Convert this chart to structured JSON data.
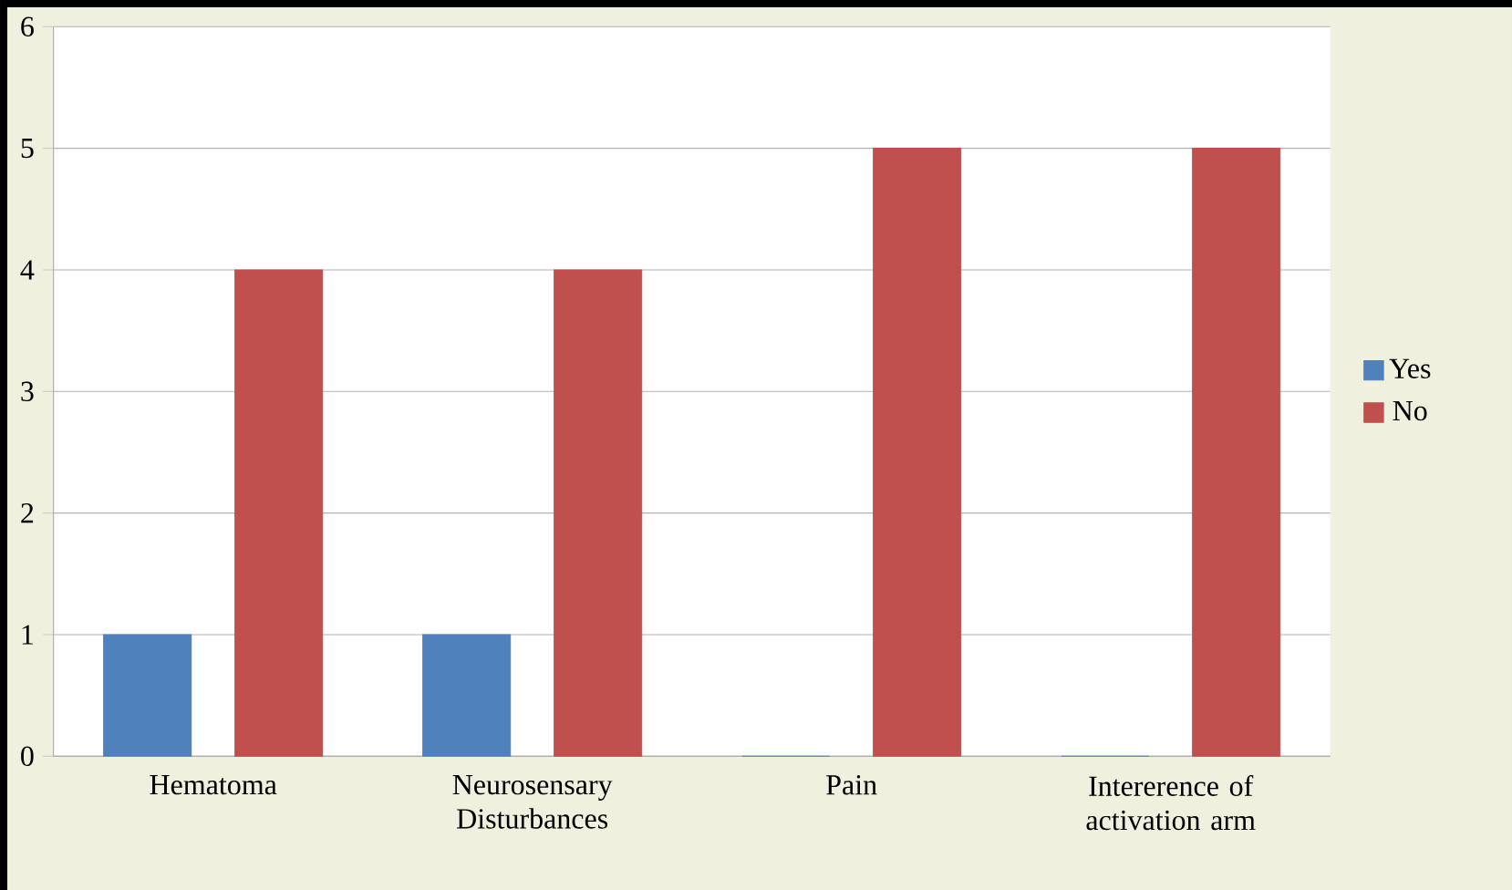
{
  "chart_data": {
    "type": "bar",
    "categories": [
      "Hematoma",
      "Neurosensary Disturbances",
      "Pain",
      "Intererence of activation arm"
    ],
    "series": [
      {
        "name": "Yes",
        "color": "#4f81bd",
        "values": [
          1,
          1,
          0,
          0
        ]
      },
      {
        "name": "No",
        "color": "#c0504d",
        "values": [
          4,
          4,
          5,
          5
        ]
      }
    ],
    "ylim": [
      0,
      6
    ],
    "yticks": [
      0,
      1,
      2,
      3,
      4,
      5,
      6
    ],
    "grid": "y",
    "legend": "right"
  }
}
